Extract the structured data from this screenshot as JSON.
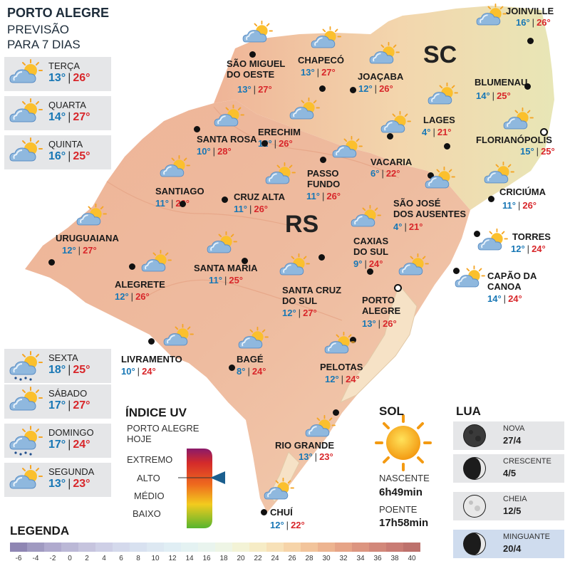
{
  "header": {
    "title": "PORTO ALEGRE",
    "subtitle_line1": "PREVISÃO",
    "subtitle_line2": "PARA 7 DIAS"
  },
  "forecast": [
    {
      "day": "TERÇA",
      "min": "13°",
      "max": "26°",
      "icon": "sun-cloud-icon"
    },
    {
      "day": "QUARTA",
      "min": "14°",
      "max": "27°",
      "icon": "sun-cloud-icon"
    },
    {
      "day": "QUINTA",
      "min": "16°",
      "max": "25°",
      "icon": "sun-cloud-icon"
    },
    {
      "day": "SEXTA",
      "min": "18°",
      "max": "25°",
      "icon": "sun-cloud-rain-icon"
    },
    {
      "day": "SÁBADO",
      "min": "17°",
      "max": "27°",
      "icon": "sun-cloud-icon"
    },
    {
      "day": "DOMINGO",
      "min": "17°",
      "max": "24°",
      "icon": "sun-cloud-rain-icon"
    },
    {
      "day": "SEGUNDA",
      "min": "13°",
      "max": "23°",
      "icon": "sun-cloud-icon"
    }
  ],
  "states": {
    "sc": "SC",
    "rs": "RS"
  },
  "cities": [
    {
      "name": "SÃO MIGUEL\nDO OESTE",
      "min": "13°",
      "max": "27°"
    },
    {
      "name": "CHAPECÓ",
      "min": "13°",
      "max": "27°"
    },
    {
      "name": "JOAÇABA",
      "min": "12°",
      "max": "26°"
    },
    {
      "name": "JOINVILLE",
      "min": "16°",
      "max": "26°"
    },
    {
      "name": "BLUMENAU",
      "min": "14°",
      "max": "25°"
    },
    {
      "name": "LAGES",
      "min": "4°",
      "max": "21°"
    },
    {
      "name": "FLORIANÓPOLIS",
      "min": "15°",
      "max": "25°"
    },
    {
      "name": "SANTA ROSA",
      "min": "10°",
      "max": "28°"
    },
    {
      "name": "ERECHIM",
      "min": "12°",
      "max": "26°"
    },
    {
      "name": "VACARIA",
      "min": "6°",
      "max": "22°"
    },
    {
      "name": "PASSO\nFUNDO",
      "min": "11°",
      "max": "26°"
    },
    {
      "name": "SANTIAGO",
      "min": "11°",
      "max": "26°"
    },
    {
      "name": "CRUZ ALTA",
      "min": "11°",
      "max": "26°"
    },
    {
      "name": "SÃO JOSÉ\nDOS AUSENTES",
      "min": "4°",
      "max": "21°"
    },
    {
      "name": "CRICIÚMA",
      "min": "11°",
      "max": "26°"
    },
    {
      "name": "URUGUAIANA",
      "min": "12°",
      "max": "27°"
    },
    {
      "name": "CAXIAS\nDO SUL",
      "min": "9°",
      "max": "24°"
    },
    {
      "name": "TORRES",
      "min": "12°",
      "max": "24°"
    },
    {
      "name": "SANTA MARIA",
      "min": "11°",
      "max": "25°"
    },
    {
      "name": "CAPÃO DA\nCANOA",
      "min": "14°",
      "max": "24°"
    },
    {
      "name": "ALEGRETE",
      "min": "12°",
      "max": "26°"
    },
    {
      "name": "SANTA CRUZ\nDO SUL",
      "min": "12°",
      "max": "27°"
    },
    {
      "name": "PORTO\nALEGRE",
      "min": "13°",
      "max": "26°"
    },
    {
      "name": "LIVRAMENTO",
      "min": "10°",
      "max": "24°"
    },
    {
      "name": "BAGÉ",
      "min": "8°",
      "max": "24°"
    },
    {
      "name": "PELOTAS",
      "min": "12°",
      "max": "24°"
    },
    {
      "name": "RIO GRANDE",
      "min": "13°",
      "max": "23°"
    },
    {
      "name": "CHUÍ",
      "min": "12°",
      "max": "22°"
    }
  ],
  "uv": {
    "title": "ÍNDICE UV",
    "location_line1": "PORTO ALEGRE",
    "location_line2": "HOJE",
    "levels": [
      "EXTREMO",
      "ALTO",
      "MÉDIO",
      "BAIXO"
    ],
    "current_level": "ALTO"
  },
  "sun": {
    "title": "SOL",
    "sunrise_label": "NASCENTE",
    "sunrise": "6h49min",
    "sunset_label": "POENTE",
    "sunset": "17h58min"
  },
  "moon": {
    "title": "LUA",
    "phases": [
      {
        "name": "NOVA",
        "date": "27/4",
        "icon": "new-moon-icon"
      },
      {
        "name": "CRESCENTE",
        "date": "4/5",
        "icon": "first-quarter-moon-icon"
      },
      {
        "name": "CHEIA",
        "date": "12/5",
        "icon": "full-moon-icon"
      },
      {
        "name": "MINGUANTE",
        "date": "20/4",
        "icon": "last-quarter-moon-icon"
      }
    ]
  },
  "legend": {
    "title": "LEGENDA",
    "values": [
      "-6",
      "-4",
      "-2",
      "0",
      "2",
      "4",
      "6",
      "8",
      "10",
      "12",
      "14",
      "16",
      "18",
      "20",
      "22",
      "24",
      "26",
      "28",
      "30",
      "32",
      "34",
      "36",
      "38",
      "40"
    ],
    "colors": [
      "#8f86b3",
      "#a09ac1",
      "#b0aace",
      "#bbb8d6",
      "#c6c4de",
      "#cecfe6",
      "#d4d9ec",
      "#d8e1f0",
      "#dde8f2",
      "#e0eef4",
      "#e4f2f2",
      "#e9f4ee",
      "#eef5e5",
      "#f3f3d6",
      "#f6ecc6",
      "#f7e1b8",
      "#f6d4a9",
      "#f2c49b",
      "#edb490",
      "#e6a487",
      "#dc9580",
      "#d2887a",
      "#c97c74",
      "#bd716c"
    ]
  }
}
